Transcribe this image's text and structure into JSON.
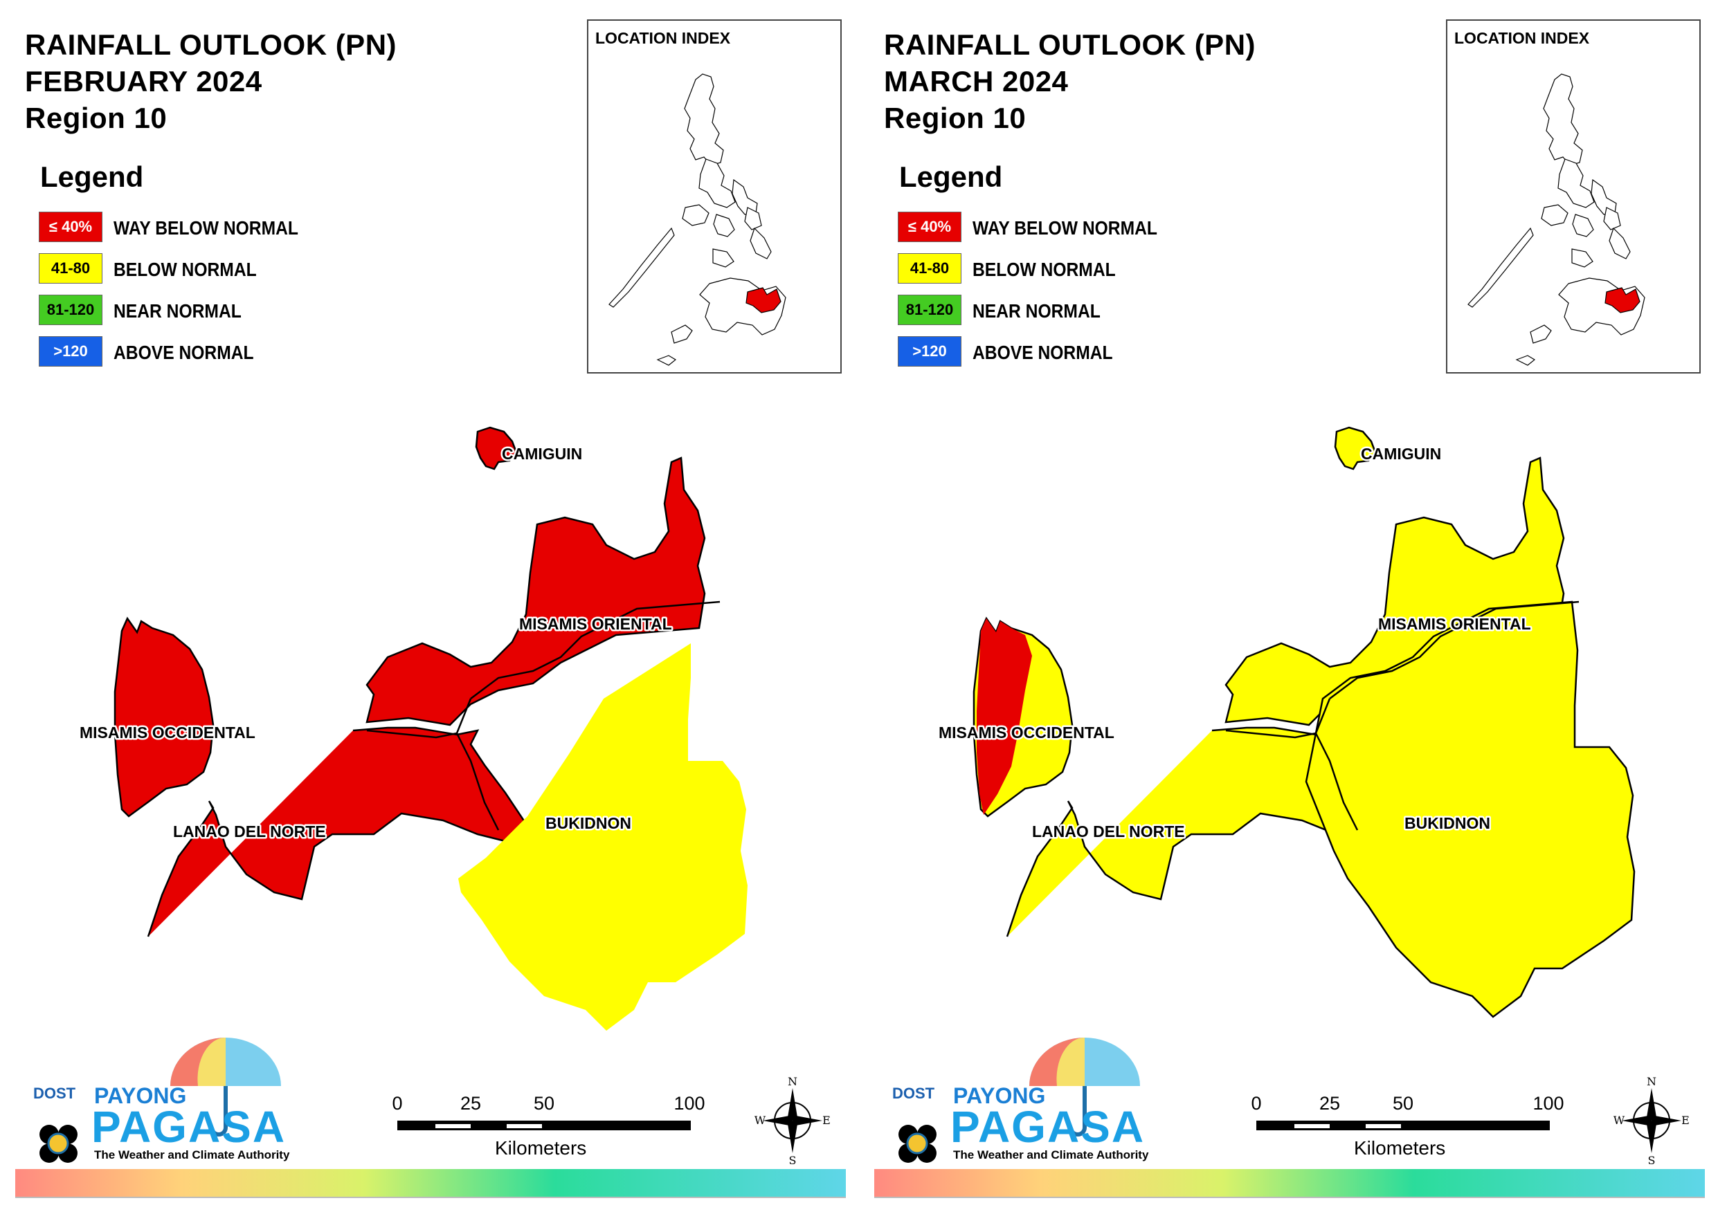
{
  "colors": {
    "way_below": "#e60000",
    "below": "#ffff00",
    "near": "#44cc22",
    "above": "#1660e6"
  },
  "legend": {
    "title": "Legend",
    "items": [
      {
        "range": "≤ 40%",
        "label": "WAY BELOW NORMAL",
        "color": "#e60000",
        "text_color": "#ffffff"
      },
      {
        "range": "41-80",
        "label": "BELOW NORMAL",
        "color": "#ffff00",
        "text_color": "#000000"
      },
      {
        "range": "81-120",
        "label": "NEAR NORMAL",
        "color": "#44cc22",
        "text_color": "#000000"
      },
      {
        "range": ">120",
        "label": "ABOVE NORMAL",
        "color": "#1660e6",
        "text_color": "#ffffff"
      }
    ]
  },
  "location_index_label": "LOCATION INDEX",
  "province_labels": {
    "camiguin": "CAMIGUIN",
    "misamis_oriental": "MISAMIS ORIENTAL",
    "misamis_occidental": "MISAMIS OCCIDENTAL",
    "lanao_del_norte": "LANAO DEL NORTE",
    "bukidnon": "BUKIDNON"
  },
  "branding": {
    "dost": "DOST",
    "payong": "PAYONG",
    "pagasa": "PAGASA",
    "tagline": "The Weather and Climate Authority"
  },
  "scale_bar": {
    "ticks": [
      "0",
      "25",
      "50",
      "100"
    ],
    "unit": "Kilometers"
  },
  "compass": {
    "n": "N",
    "s": "S",
    "e": "E",
    "w": "W"
  },
  "panels": [
    {
      "title_line1": "RAINFALL OUTLOOK (PN)",
      "title_line2": "FEBRUARY 2024",
      "title_line3": "Region 10",
      "categories": {
        "camiguin": "way_below",
        "misamis_oriental": "way_below",
        "misamis_occidental": "way_below",
        "lanao_del_norte": "way_below",
        "bukidnon_west": "way_below",
        "bukidnon_east": "below"
      }
    },
    {
      "title_line1": "RAINFALL OUTLOOK (PN)",
      "title_line2": "MARCH 2024",
      "title_line3": "Region 10",
      "categories": {
        "camiguin": "below",
        "misamis_oriental": "below",
        "misamis_occidental": "below",
        "misamis_occidental_west_strip": "way_below",
        "lanao_del_norte": "below",
        "bukidnon": "below"
      }
    }
  ]
}
